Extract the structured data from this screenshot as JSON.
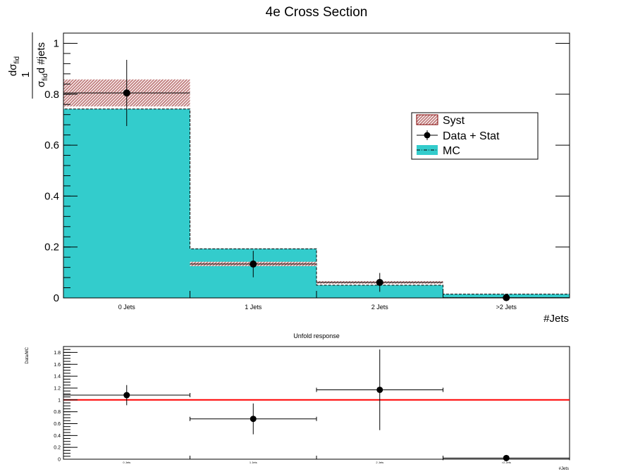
{
  "colors": {
    "mc_fill": "#33cccc",
    "syst_fill": "#c8a0a0",
    "syst_hatch": "#800000",
    "ratio_line": "#ff0000",
    "marker": "#000000"
  },
  "chart_data": [
    {
      "type": "bar",
      "title": "4e Cross Section",
      "ylabel": {
        "fraction_num": "1",
        "sigma_a": "σ",
        "sigma_a_sub": "fid",
        "den_prefix": "σ",
        "den_sub": "fid",
        "den_rest": "d #jets",
        "numer_d": "dσ",
        "numer_sub": "fid"
      },
      "xlabel": "#Jets",
      "categories": [
        "0 Jets",
        "1 Jets",
        "2 Jets",
        ">2 Jets"
      ],
      "ylim": [
        0,
        1.04
      ],
      "yticks": [
        "0",
        "0.2",
        "0.4",
        "0.6",
        "0.8",
        "1"
      ],
      "ytick_values": [
        0,
        0.2,
        0.4,
        0.6,
        0.8,
        1.0
      ],
      "series": [
        {
          "name": "MC",
          "style": "filled histogram, dashed outline",
          "values": [
            0.742,
            0.193,
            0.05,
            0.015
          ]
        },
        {
          "name": "Data + Stat",
          "style": "markers with error bars",
          "values": [
            0.805,
            0.133,
            0.061,
            0.001
          ],
          "err_up": [
            0.13,
            0.052,
            0.037,
            0.002
          ],
          "err_down": [
            0.13,
            0.052,
            0.037,
            0.001
          ]
        },
        {
          "name": "Syst",
          "style": "hatched band",
          "upper": [
            0.858,
            0.142,
            0.066,
            0.002
          ],
          "lower": [
            0.752,
            0.125,
            0.056,
            0.0
          ]
        }
      ],
      "legend": {
        "placement": "center-right",
        "entries": [
          "Syst",
          "Data + Stat",
          "MC"
        ]
      }
    },
    {
      "type": "scatter",
      "title": "Unfold response",
      "ylabel": "Data/MC",
      "xlabel": "#Jets",
      "categories": [
        "0 Jets",
        "1 Jets",
        "2 Jets",
        ">2 Jets"
      ],
      "ylim": [
        0,
        1.9
      ],
      "yticks": [
        "0",
        "0.2",
        "0.4",
        "0.6",
        "0.8",
        "1",
        "1.2",
        "1.4",
        "1.6",
        "1.8"
      ],
      "ytick_values": [
        0,
        0.2,
        0.4,
        0.6,
        0.8,
        1.0,
        1.2,
        1.4,
        1.6,
        1.8
      ],
      "reference_line": 1.0,
      "values": [
        1.08,
        0.68,
        1.17,
        0.02
      ],
      "err_up": [
        0.17,
        0.26,
        0.68,
        0.02
      ],
      "err_down": [
        0.17,
        0.26,
        0.68,
        0.02
      ]
    }
  ]
}
